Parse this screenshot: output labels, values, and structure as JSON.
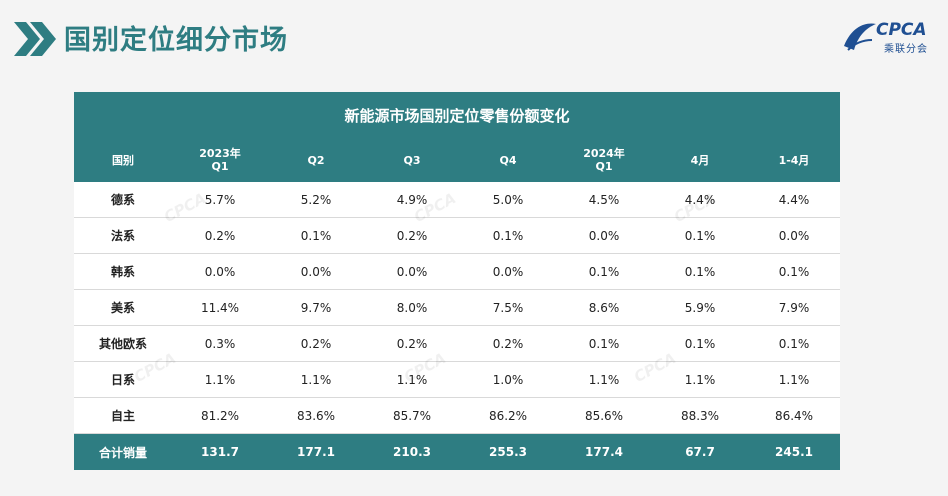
{
  "page": {
    "title": "国别定位细分市场"
  },
  "logo": {
    "text": "CPCA",
    "subtext": "乘联分会",
    "color": "#1f4f92"
  },
  "table": {
    "title": "新能源市场国别定位零售份额变化",
    "header_color": "#2e7d82",
    "columns": [
      {
        "line1": "国别",
        "line2": ""
      },
      {
        "line1": "2023年",
        "line2": "Q1"
      },
      {
        "line1": "",
        "line2": "Q2"
      },
      {
        "line1": "",
        "line2": "Q3"
      },
      {
        "line1": "",
        "line2": "Q4"
      },
      {
        "line1": "2024年",
        "line2": "Q1"
      },
      {
        "line1": "",
        "line2": "4月"
      },
      {
        "line1": "",
        "line2": "1-4月"
      }
    ],
    "rows": [
      {
        "name": "德系",
        "values": [
          "5.7%",
          "5.2%",
          "4.9%",
          "5.0%",
          "4.5%",
          "4.4%",
          "4.4%"
        ]
      },
      {
        "name": "法系",
        "values": [
          "0.2%",
          "0.1%",
          "0.2%",
          "0.1%",
          "0.0%",
          "0.1%",
          "0.0%"
        ]
      },
      {
        "name": "韩系",
        "values": [
          "0.0%",
          "0.0%",
          "0.0%",
          "0.0%",
          "0.1%",
          "0.1%",
          "0.1%"
        ]
      },
      {
        "name": "美系",
        "values": [
          "11.4%",
          "9.7%",
          "8.0%",
          "7.5%",
          "8.6%",
          "5.9%",
          "7.9%"
        ]
      },
      {
        "name": "其他欧系",
        "values": [
          "0.3%",
          "0.2%",
          "0.2%",
          "0.2%",
          "0.1%",
          "0.1%",
          "0.1%"
        ]
      },
      {
        "name": "日系",
        "values": [
          "1.1%",
          "1.1%",
          "1.1%",
          "1.0%",
          "1.1%",
          "1.1%",
          "1.1%"
        ]
      },
      {
        "name": "自主",
        "values": [
          "81.2%",
          "83.6%",
          "85.7%",
          "86.2%",
          "85.6%",
          "88.3%",
          "86.4%"
        ]
      }
    ],
    "total": {
      "name": "合计销量",
      "values": [
        "131.7",
        "177.1",
        "210.3",
        "255.3",
        "177.4",
        "67.7",
        "245.1"
      ]
    }
  }
}
